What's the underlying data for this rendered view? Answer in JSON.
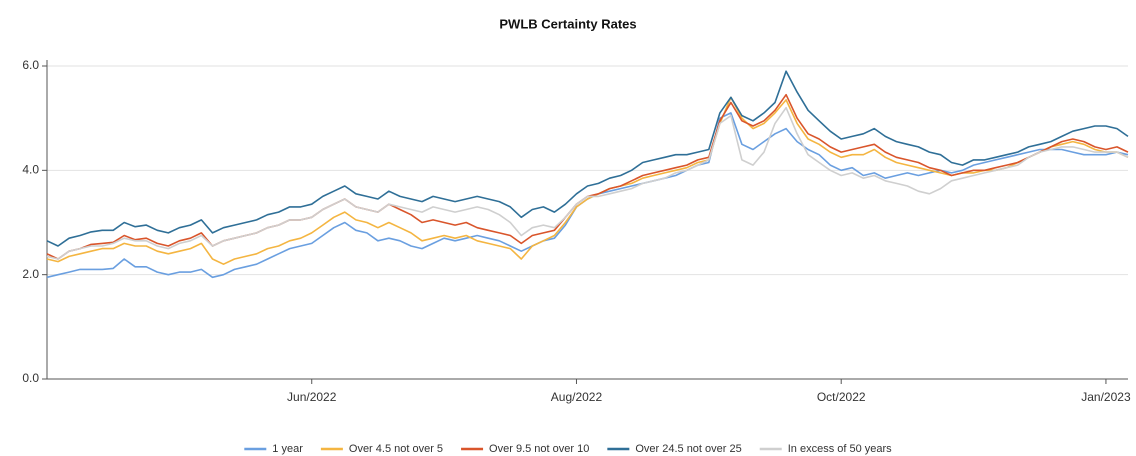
{
  "chart_data": {
    "type": "line",
    "title": "PWLB Certainty Rates",
    "categories": [
      null,
      null,
      null,
      null,
      null,
      null,
      null,
      null,
      null,
      null,
      null,
      null,
      null,
      null,
      null,
      null,
      null,
      null,
      null,
      null,
      null,
      null,
      null,
      null,
      "Jun/2022",
      null,
      null,
      null,
      null,
      null,
      null,
      null,
      null,
      null,
      null,
      null,
      null,
      null,
      null,
      null,
      null,
      null,
      null,
      null,
      null,
      null,
      null,
      null,
      "Aug/2022",
      null,
      null,
      null,
      null,
      null,
      null,
      null,
      null,
      null,
      null,
      null,
      null,
      null,
      null,
      null,
      null,
      null,
      null,
      null,
      null,
      null,
      null,
      null,
      "Oct/2022",
      null,
      null,
      null,
      null,
      null,
      null,
      null,
      null,
      null,
      null,
      null,
      null,
      null,
      null,
      null,
      null,
      null,
      null,
      null,
      null,
      null,
      null,
      null,
      "Jan/2023",
      null,
      null
    ],
    "ylim": [
      0,
      6
    ],
    "yticks": [
      {
        "value": 0,
        "label": "0.0"
      },
      {
        "value": 2,
        "label": "2.0"
      },
      {
        "value": 4,
        "label": "4.0"
      },
      {
        "value": 6,
        "label": "6.0"
      }
    ],
    "grid": true,
    "legend": "bottom",
    "series": [
      {
        "name": "1 year",
        "color": "#6a9fe0",
        "values": [
          1.95,
          2.0,
          2.05,
          2.1,
          2.1,
          2.1,
          2.12,
          2.3,
          2.15,
          2.15,
          2.05,
          2.0,
          2.05,
          2.05,
          2.1,
          1.95,
          2.0,
          2.1,
          2.15,
          2.2,
          2.3,
          2.4,
          2.5,
          2.55,
          2.6,
          2.75,
          2.9,
          3.0,
          2.85,
          2.8,
          2.65,
          2.7,
          2.65,
          2.55,
          2.5,
          2.6,
          2.7,
          2.65,
          2.7,
          2.75,
          2.7,
          2.65,
          2.55,
          2.45,
          2.55,
          2.65,
          2.7,
          2.95,
          3.3,
          3.45,
          3.55,
          3.6,
          3.65,
          3.7,
          3.75,
          3.8,
          3.85,
          3.9,
          4.0,
          4.1,
          4.15,
          5.0,
          5.1,
          4.5,
          4.4,
          4.55,
          4.7,
          4.8,
          4.55,
          4.4,
          4.3,
          4.1,
          4.0,
          4.05,
          3.9,
          3.95,
          3.85,
          3.9,
          3.95,
          3.9,
          3.95,
          4.0,
          3.95,
          4.0,
          4.1,
          4.15,
          4.2,
          4.25,
          4.3,
          4.35,
          4.4,
          4.4,
          4.4,
          4.35,
          4.3,
          4.3,
          4.3,
          4.35,
          4.3
        ]
      },
      {
        "name": "Over 4.5 not over 5",
        "color": "#f4b541",
        "values": [
          2.3,
          2.25,
          2.35,
          2.4,
          2.45,
          2.5,
          2.5,
          2.6,
          2.55,
          2.55,
          2.45,
          2.4,
          2.45,
          2.5,
          2.6,
          2.3,
          2.2,
          2.3,
          2.35,
          2.4,
          2.5,
          2.55,
          2.65,
          2.7,
          2.8,
          2.95,
          3.1,
          3.2,
          3.05,
          3.0,
          2.9,
          3.0,
          2.9,
          2.8,
          2.65,
          2.7,
          2.75,
          2.7,
          2.75,
          2.65,
          2.6,
          2.55,
          2.5,
          2.3,
          2.55,
          2.65,
          2.75,
          3.0,
          3.3,
          3.45,
          3.55,
          3.65,
          3.7,
          3.75,
          3.85,
          3.9,
          3.95,
          4.0,
          4.05,
          4.15,
          4.2,
          4.9,
          5.4,
          5.0,
          4.8,
          4.9,
          5.1,
          5.35,
          4.9,
          4.6,
          4.5,
          4.35,
          4.25,
          4.3,
          4.3,
          4.4,
          4.25,
          4.15,
          4.1,
          4.05,
          4.0,
          3.95,
          3.9,
          3.95,
          3.95,
          4.0,
          4.0,
          4.05,
          4.15,
          4.25,
          4.35,
          4.45,
          4.5,
          4.55,
          4.5,
          4.4,
          4.35,
          4.35,
          4.25
        ]
      },
      {
        "name": "Over 9.5 not over 10",
        "color": "#d9552b",
        "values": [
          2.4,
          2.3,
          2.45,
          2.5,
          2.58,
          2.6,
          2.62,
          2.75,
          2.67,
          2.7,
          2.6,
          2.55,
          2.65,
          2.7,
          2.8,
          2.55,
          2.65,
          2.7,
          2.75,
          2.8,
          2.9,
          2.95,
          3.05,
          3.05,
          3.1,
          3.25,
          3.35,
          3.45,
          3.3,
          3.25,
          3.2,
          3.35,
          3.25,
          3.15,
          3.0,
          3.05,
          3.0,
          2.95,
          3.0,
          2.9,
          2.85,
          2.8,
          2.75,
          2.6,
          2.75,
          2.8,
          2.85,
          3.1,
          3.35,
          3.5,
          3.55,
          3.65,
          3.7,
          3.8,
          3.9,
          3.95,
          4.0,
          4.05,
          4.1,
          4.2,
          4.25,
          4.95,
          5.3,
          4.95,
          4.85,
          4.95,
          5.15,
          5.45,
          5.0,
          4.7,
          4.6,
          4.45,
          4.35,
          4.4,
          4.45,
          4.5,
          4.35,
          4.25,
          4.2,
          4.15,
          4.05,
          4.0,
          3.9,
          3.95,
          4.0,
          4.0,
          4.05,
          4.1,
          4.15,
          4.25,
          4.35,
          4.45,
          4.55,
          4.6,
          4.55,
          4.45,
          4.4,
          4.45,
          4.35
        ]
      },
      {
        "name": "Over 24.5 not over 25",
        "color": "#2f6f97",
        "values": [
          2.65,
          2.55,
          2.7,
          2.75,
          2.82,
          2.85,
          2.85,
          3.0,
          2.92,
          2.95,
          2.85,
          2.8,
          2.9,
          2.95,
          3.05,
          2.8,
          2.9,
          2.95,
          3.0,
          3.05,
          3.15,
          3.2,
          3.3,
          3.3,
          3.35,
          3.5,
          3.6,
          3.7,
          3.55,
          3.5,
          3.45,
          3.6,
          3.5,
          3.45,
          3.4,
          3.5,
          3.45,
          3.4,
          3.45,
          3.5,
          3.45,
          3.4,
          3.3,
          3.1,
          3.25,
          3.3,
          3.2,
          3.35,
          3.55,
          3.7,
          3.75,
          3.85,
          3.9,
          4.0,
          4.15,
          4.2,
          4.25,
          4.3,
          4.3,
          4.35,
          4.4,
          5.1,
          5.4,
          5.05,
          4.95,
          5.1,
          5.3,
          5.9,
          5.5,
          5.15,
          4.95,
          4.75,
          4.6,
          4.65,
          4.7,
          4.8,
          4.65,
          4.55,
          4.5,
          4.45,
          4.35,
          4.3,
          4.15,
          4.1,
          4.2,
          4.2,
          4.25,
          4.3,
          4.35,
          4.45,
          4.5,
          4.55,
          4.65,
          4.75,
          4.8,
          4.85,
          4.85,
          4.8,
          4.65
        ]
      },
      {
        "name": "In excess of 50 years",
        "color": "#cfcfcf",
        "values": [
          2.35,
          2.3,
          2.45,
          2.5,
          2.55,
          2.55,
          2.6,
          2.7,
          2.65,
          2.65,
          2.55,
          2.5,
          2.6,
          2.65,
          2.75,
          2.55,
          2.65,
          2.7,
          2.75,
          2.8,
          2.9,
          2.95,
          3.05,
          3.05,
          3.1,
          3.25,
          3.35,
          3.45,
          3.3,
          3.25,
          3.2,
          3.35,
          3.3,
          3.25,
          3.2,
          3.3,
          3.25,
          3.2,
          3.25,
          3.3,
          3.25,
          3.15,
          3.0,
          2.75,
          2.9,
          2.95,
          2.9,
          3.1,
          3.35,
          3.5,
          3.5,
          3.55,
          3.6,
          3.65,
          3.75,
          3.8,
          3.85,
          3.95,
          4.0,
          4.1,
          4.2,
          4.9,
          5.05,
          4.2,
          4.1,
          4.35,
          4.9,
          5.2,
          4.7,
          4.3,
          4.15,
          4.0,
          3.9,
          3.95,
          3.85,
          3.9,
          3.8,
          3.75,
          3.7,
          3.6,
          3.55,
          3.65,
          3.8,
          3.85,
          3.9,
          3.95,
          4.0,
          4.05,
          4.1,
          4.25,
          4.35,
          4.4,
          4.45,
          4.45,
          4.4,
          4.35,
          4.35,
          4.35,
          4.25
        ]
      }
    ]
  }
}
